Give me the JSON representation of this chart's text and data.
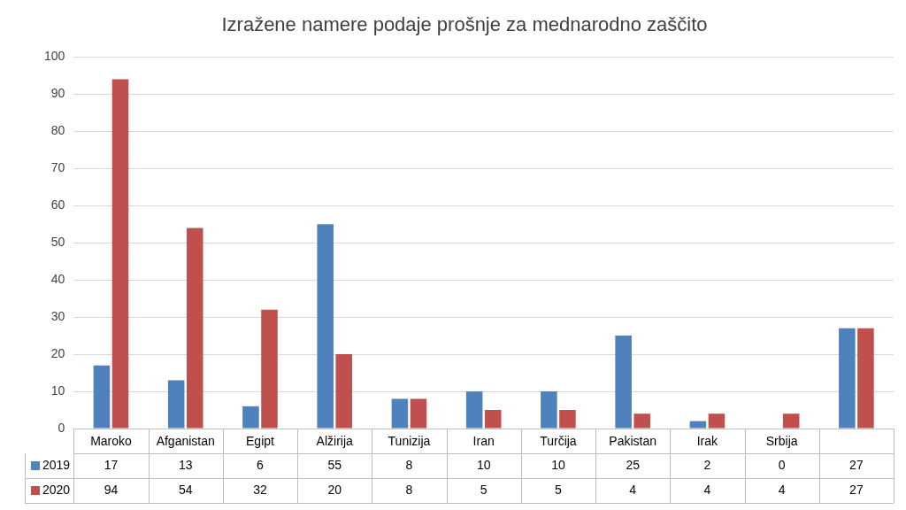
{
  "chart_data": {
    "type": "bar",
    "title": "Izražene namere podaje prošnje za mednarodno zaščito",
    "categories": [
      "Maroko",
      "Afganistan",
      "Egipt",
      "Alžirija",
      "Tunizija",
      "Iran",
      "Turčija",
      "Pakistan",
      "Irak",
      "Srbija",
      null
    ],
    "series": [
      {
        "name": "2019",
        "color": "#4f81bd",
        "values": [
          17,
          13,
          6,
          55,
          8,
          10,
          10,
          25,
          2,
          0,
          27
        ]
      },
      {
        "name": "2020",
        "color": "#c0504d",
        "values": [
          94,
          54,
          32,
          20,
          8,
          5,
          5,
          4,
          4,
          4,
          27
        ]
      }
    ],
    "ylim": [
      0,
      100
    ],
    "yticks": [
      0,
      10,
      20,
      30,
      40,
      50,
      60,
      70,
      80,
      90,
      100
    ],
    "grid": "y",
    "legend": "bottom",
    "data_labels": true
  }
}
